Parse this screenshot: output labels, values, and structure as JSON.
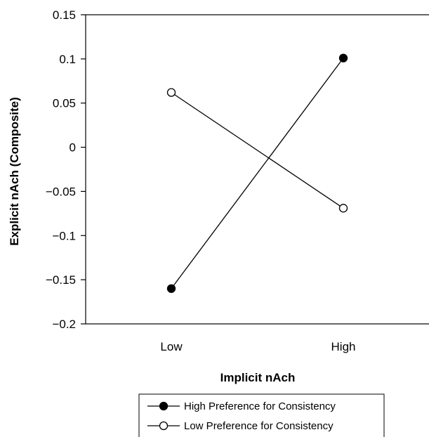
{
  "chart_data": {
    "type": "line",
    "categories": [
      "Low",
      "High"
    ],
    "xlabel": "Implicit nAch",
    "ylabel": "Explicit nAch (Composite)",
    "ylim": [
      -0.2,
      0.15
    ],
    "yticks": [
      0.15,
      0.1,
      0.05,
      0,
      -0.05,
      -0.1,
      -0.15,
      -0.2
    ],
    "ytick_labels": [
      "0.15",
      "0.1",
      "0.05",
      "0",
      "−0.05",
      "−0.1",
      "−0.15",
      "−0.2"
    ],
    "grid": false,
    "legend_position": "bottom",
    "series": [
      {
        "name": "High Preference for Consistency",
        "marker": "filled-circle",
        "color": "#000000",
        "values": [
          -0.16,
          0.101
        ]
      },
      {
        "name": "Low Preference for Consistency",
        "marker": "open-circle",
        "color": "#000000",
        "values": [
          0.062,
          -0.069
        ]
      }
    ]
  }
}
